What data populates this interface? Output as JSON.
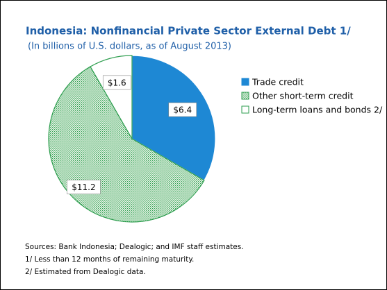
{
  "chart_data": {
    "type": "pie",
    "title": "Indonesia: Nonfinancial Private Sector External Debt 1/",
    "subtitle": "(In billions of U.S. dollars, as of August 2013)",
    "categories": [
      "Trade credit",
      "Other short-term credit",
      "Long-term loans and bonds 2/"
    ],
    "values": [
      6.4,
      11.2,
      1.6
    ],
    "value_labels": [
      "$6.4",
      "$11.2",
      "$1.6"
    ],
    "colors": [
      "#1e88d4",
      "#2e9e4f",
      "#ffffff"
    ],
    "hatch": [
      false,
      true,
      false
    ],
    "legend": "right",
    "notes": [
      "Sources: Bank Indonesia; Dealogic; and IMF staff estimates.",
      "1/ Less than 12 months of remaining maturity.",
      "2/ Estimated from Dealogic data."
    ]
  }
}
